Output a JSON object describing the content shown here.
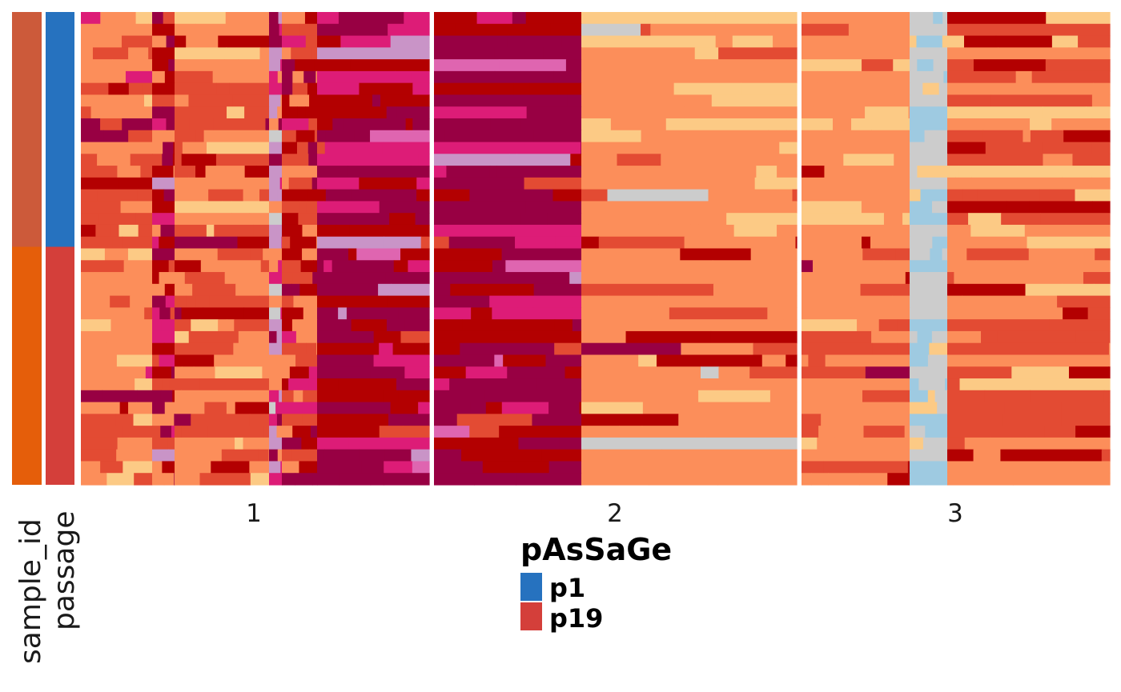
{
  "chart_data": {
    "type": "heatmap",
    "title": "",
    "panels": [
      {
        "label": "1"
      },
      {
        "label": "2"
      },
      {
        "label": "3"
      }
    ],
    "annotation_tracks": [
      {
        "label": "sample_id"
      },
      {
        "label": "passage"
      }
    ],
    "sample_id_colors": [
      "#cc5a3a",
      "#e55e0a"
    ],
    "legend": {
      "title": "pAsSaGe",
      "items": [
        {
          "label": "p1",
          "color": "#2672bf"
        },
        {
          "label": "p19",
          "color": "#d43f3a"
        }
      ]
    },
    "n_rows": 40,
    "passage_split_row": 20,
    "palette": [
      "#fcca85",
      "#fc8e5a",
      "#e34b33",
      "#b30001",
      "#980043",
      "#dd1c77",
      "#df65b0",
      "#c994c7",
      "#cccccc",
      "#9ecae1"
    ]
  }
}
